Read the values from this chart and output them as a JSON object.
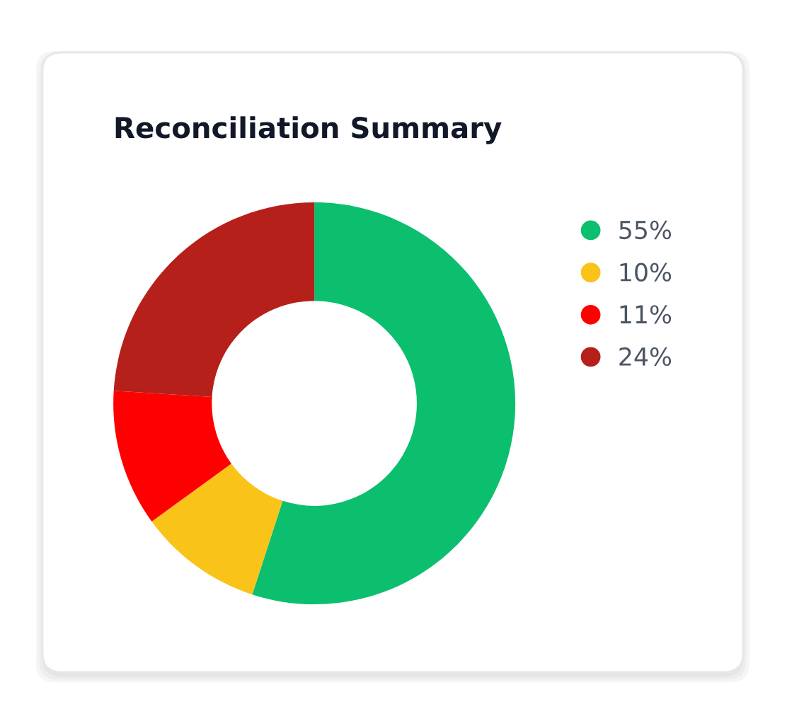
{
  "chart_data": {
    "type": "donut",
    "title": "Reconciliation Summary",
    "categories": [
      "55%",
      "10%",
      "11%",
      "24%"
    ],
    "values": [
      55,
      10,
      11,
      24
    ],
    "colors": [
      "#0bbf6e",
      "#f9c31a",
      "#ff0000",
      "#b5201a"
    ],
    "legend": "right"
  }
}
